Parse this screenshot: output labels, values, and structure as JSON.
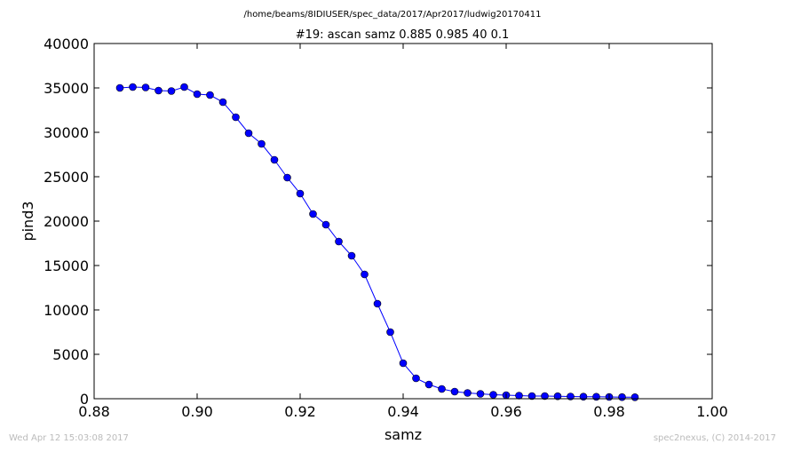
{
  "chart_data": {
    "type": "line",
    "supertitle": "/home/beams/8IDIUSER/spec_data/2017/Apr2017/ludwig20170411",
    "title": "#19: ascan  samz 0.885 0.985  40 0.1",
    "xlabel": "samz",
    "ylabel": "pind3",
    "xlim": [
      0.88,
      1.0
    ],
    "ylim": [
      0,
      40000
    ],
    "xticks": [
      0.88,
      0.9,
      0.92,
      0.94,
      0.96,
      0.98,
      1.0
    ],
    "xtick_labels": [
      "0.88",
      "0.90",
      "0.92",
      "0.94",
      "0.96",
      "0.98",
      "1.00"
    ],
    "yticks": [
      0,
      5000,
      10000,
      15000,
      20000,
      25000,
      30000,
      35000,
      40000
    ],
    "ytick_labels": [
      "0",
      "5000",
      "10000",
      "15000",
      "20000",
      "25000",
      "30000",
      "35000",
      "40000"
    ],
    "grid": false,
    "line_color": "#0000ff",
    "marker_color": "#0000ff",
    "series": [
      {
        "x": [
          0.885,
          0.8875,
          0.89,
          0.8925,
          0.895,
          0.8975,
          0.9,
          0.9025,
          0.905,
          0.9075,
          0.91,
          0.9125,
          0.915,
          0.9175,
          0.92,
          0.9225,
          0.925,
          0.9275,
          0.93,
          0.9325,
          0.935,
          0.9375,
          0.94,
          0.9425,
          0.945,
          0.9475,
          0.95,
          0.9525,
          0.955,
          0.9575,
          0.96,
          0.9625,
          0.965,
          0.9675,
          0.97,
          0.9725,
          0.975,
          0.9775,
          0.98,
          0.9825,
          0.985
        ],
        "y": [
          35000,
          35100,
          35050,
          34700,
          34650,
          35100,
          34300,
          34200,
          33400,
          31700,
          29900,
          28700,
          26900,
          24900,
          23100,
          20800,
          19600,
          17700,
          16100,
          14000,
          10700,
          7500,
          4000,
          2300,
          1600,
          1100,
          800,
          650,
          550,
          450,
          400,
          350,
          300,
          300,
          280,
          250,
          230,
          220,
          200,
          180,
          170
        ]
      }
    ]
  },
  "footer": {
    "left": "Wed Apr 12 15:03:08 2017",
    "right": "spec2nexus, (C) 2014-2017"
  }
}
